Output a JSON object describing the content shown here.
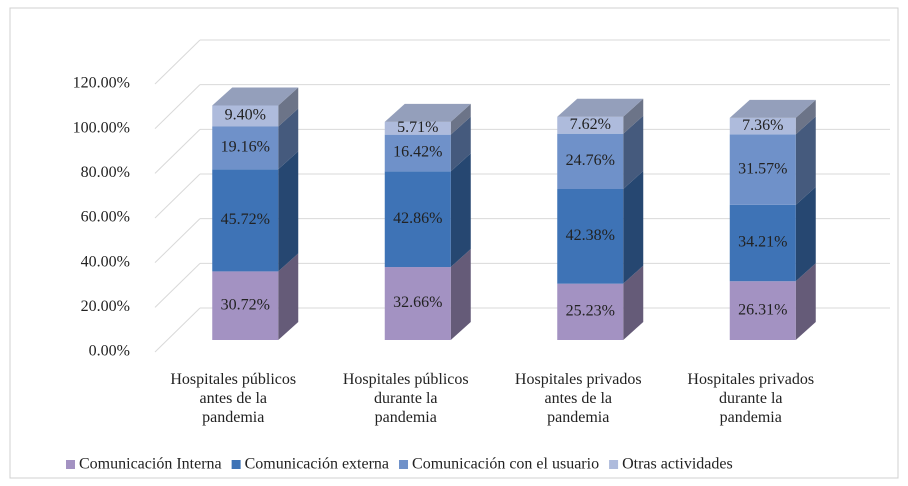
{
  "chart_data": {
    "type": "bar3d_stacked",
    "categories": [
      "Hospitales públicos\nantes de la\npandemia",
      "Hospitales públicos\ndurante la\npandemia",
      "Hospitales privados\nantes de la\npandemia",
      "Hospitales privados\ndurante la\npandemia"
    ],
    "series": [
      {
        "name": "Comunicación Interna",
        "color": "#a392c2",
        "values": [
          30.72,
          32.66,
          25.23,
          26.31
        ],
        "value_labels": [
          "30.72%",
          "32.66%",
          "25.23%",
          "26.31%"
        ]
      },
      {
        "name": "Comunicación externa",
        "color": "#3e73b6",
        "values": [
          45.72,
          42.86,
          42.38,
          34.21
        ],
        "value_labels": [
          "45.72%",
          "42.86%",
          "42.38%",
          "34.21%"
        ]
      },
      {
        "name": "Comunicación con el usuario",
        "color": "#6f91c9",
        "values": [
          19.16,
          16.42,
          24.76,
          31.57
        ],
        "value_labels": [
          "19.16%",
          "16.42%",
          "24.76%",
          "31.57%"
        ]
      },
      {
        "name": "Otras actividades",
        "color": "#aebbdc",
        "values": [
          9.4,
          5.71,
          7.62,
          7.36
        ],
        "value_labels": [
          "9.40%",
          "5.71%",
          "7.62%",
          "7.36%"
        ]
      }
    ],
    "ylim": [
      0,
      120
    ],
    "yticks": [
      {
        "value": 0,
        "label": "0.00%"
      },
      {
        "value": 20,
        "label": "20.00%"
      },
      {
        "value": 40,
        "label": "40.00%"
      },
      {
        "value": 60,
        "label": "60.00%"
      },
      {
        "value": 80,
        "label": "80.00%"
      },
      {
        "value": 100,
        "label": "100.00%"
      },
      {
        "value": 120,
        "label": "120.00%"
      }
    ],
    "grid": true,
    "legend": "bottom"
  }
}
